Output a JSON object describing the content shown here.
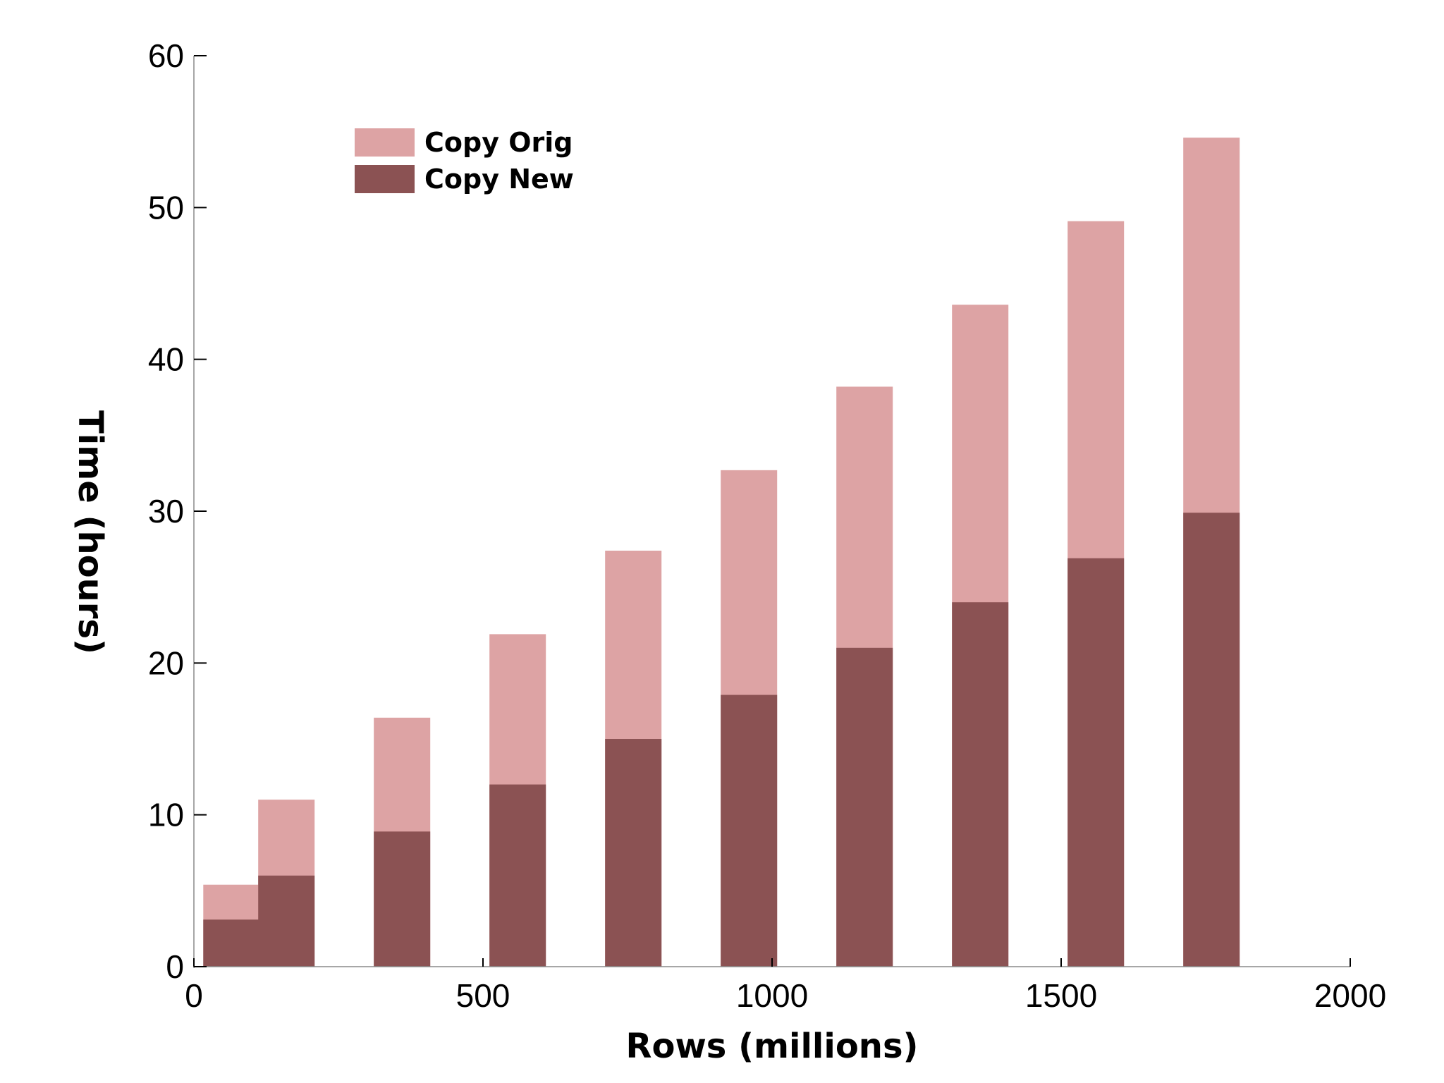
{
  "chart_data": {
    "type": "bar",
    "stacked": false,
    "overlaid": true,
    "title": "",
    "xlabel": "Rows (millions)",
    "ylabel": "Time (hours)",
    "xlim": [
      0,
      2000
    ],
    "ylim": [
      0,
      60
    ],
    "xticks": [
      "0",
      "500",
      "1000",
      "1500",
      "2000"
    ],
    "yticks": [
      "0",
      "10",
      "20",
      "30",
      "40",
      "50",
      "60"
    ],
    "grid": false,
    "legend_position": "top-left",
    "x": [
      65,
      160,
      360,
      560,
      760,
      960,
      1160,
      1360,
      1560,
      1760
    ],
    "series": [
      {
        "name": "Copy Orig",
        "color": "#dda3a4",
        "values": [
          5.4,
          11.0,
          16.4,
          21.9,
          27.4,
          32.7,
          38.2,
          43.6,
          49.1,
          54.6
        ]
      },
      {
        "name": "Copy New",
        "color": "#8b5253",
        "values": [
          3.1,
          6.0,
          8.9,
          12.0,
          15.0,
          17.9,
          21.0,
          24.0,
          26.9,
          29.9
        ]
      }
    ]
  }
}
